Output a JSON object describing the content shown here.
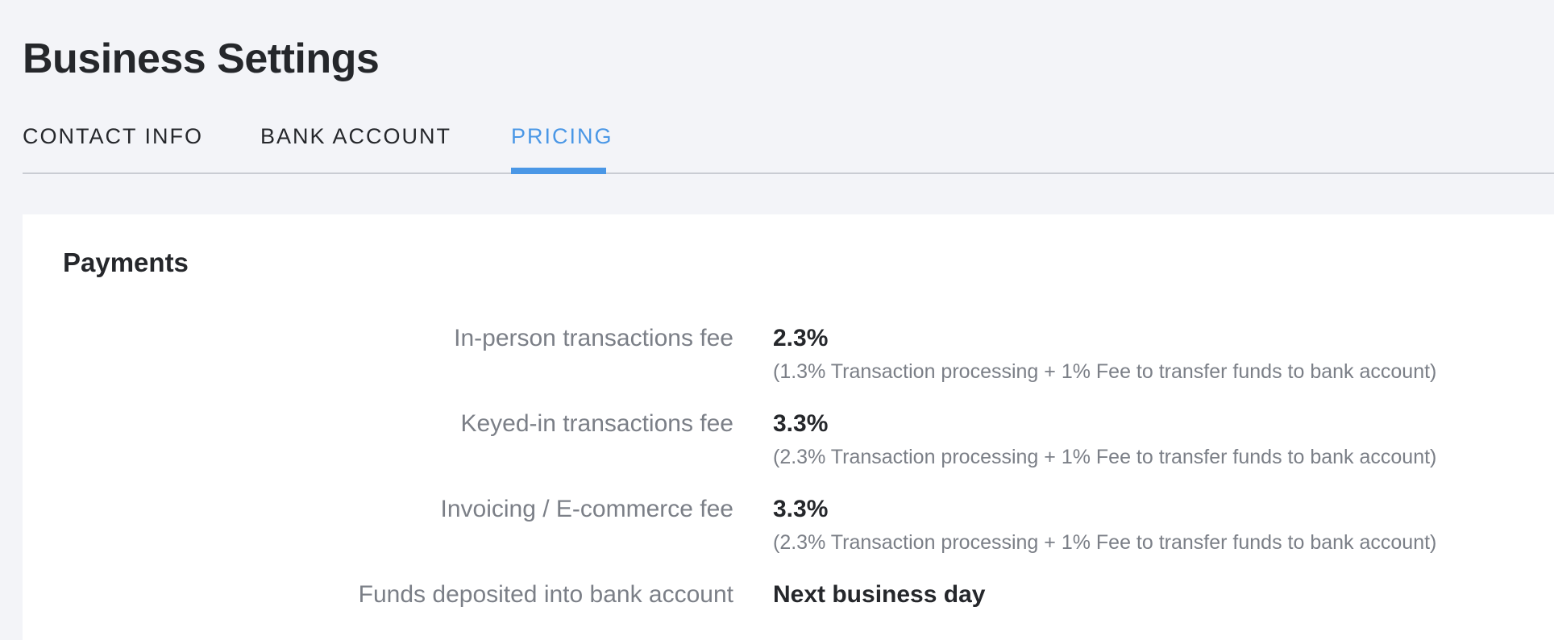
{
  "header": {
    "title": "Business Settings"
  },
  "tabs": [
    {
      "label": "CONTACT INFO",
      "active": false
    },
    {
      "label": "BANK ACCOUNT",
      "active": false
    },
    {
      "label": "PRICING",
      "active": true
    }
  ],
  "colors": {
    "accent": "#4a97e6",
    "background": "#f3f4f8",
    "card": "#ffffff",
    "text_primary": "#25272b",
    "text_secondary": "#7b7f87"
  },
  "payments": {
    "title": "Payments",
    "rows": [
      {
        "label": "In-person transactions fee",
        "value": "2.3%",
        "detail": "(1.3% Transaction processing + 1% Fee to transfer funds to bank account)"
      },
      {
        "label": "Keyed-in transactions fee",
        "value": "3.3%",
        "detail": "(2.3% Transaction processing + 1% Fee to transfer funds to bank account)"
      },
      {
        "label": "Invoicing / E-commerce fee",
        "value": "3.3%",
        "detail": "(2.3% Transaction processing + 1% Fee to transfer funds to bank account)"
      },
      {
        "label": "Funds deposited into bank account",
        "value": "Next business day"
      }
    ]
  }
}
